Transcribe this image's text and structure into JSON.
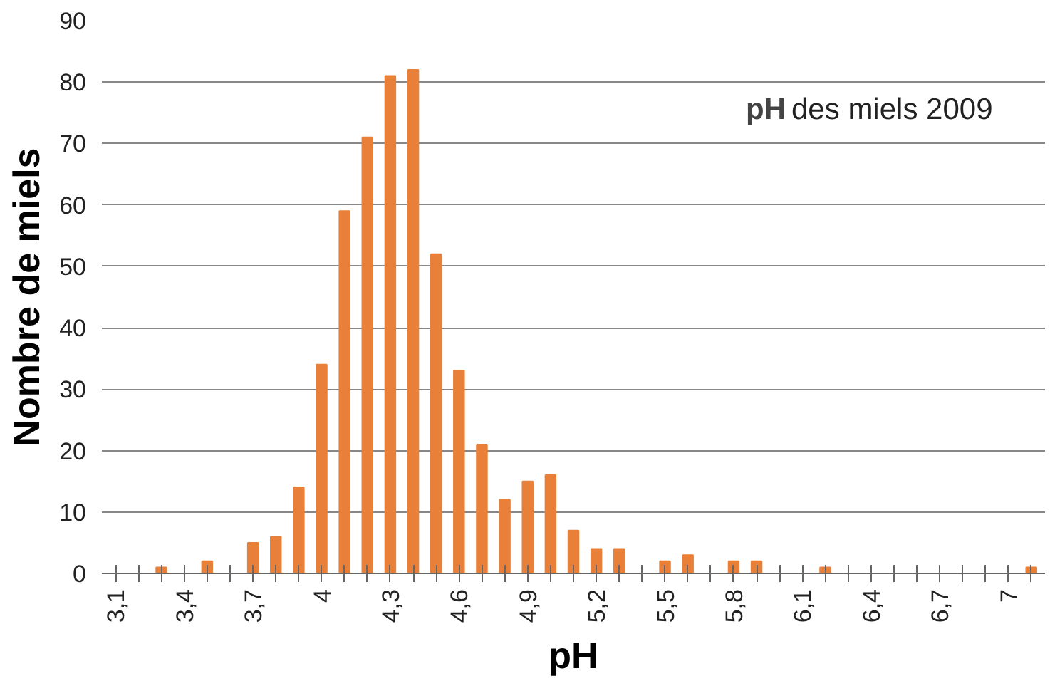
{
  "chart_data": {
    "type": "bar",
    "xlabel": "pH",
    "ylabel": "Nombre de miels",
    "annotations": [
      "pH des miels 2009"
    ],
    "categories": [
      "3,1",
      null,
      null,
      "3,4",
      null,
      null,
      "3,7",
      null,
      null,
      "4",
      null,
      null,
      "4,3",
      null,
      null,
      "4,6",
      null,
      null,
      "4,9",
      null,
      null,
      "5,2",
      null,
      null,
      "5,5",
      null,
      null,
      "5,8",
      null,
      null,
      "6,1",
      null,
      null,
      "6,4",
      null,
      null,
      "6,7",
      null,
      null,
      "7",
      null
    ],
    "values": [
      0,
      0,
      1,
      0,
      2,
      0,
      5,
      6,
      14,
      34,
      59,
      71,
      81,
      82,
      52,
      33,
      21,
      12,
      15,
      16,
      7,
      4,
      4,
      0,
      2,
      3,
      0,
      2,
      2,
      0,
      0,
      1,
      0,
      0,
      0,
      0,
      0,
      0,
      0,
      0,
      1
    ],
    "color": "#e8803a",
    "ylim": [
      0,
      90
    ],
    "yticks": [
      0,
      10,
      20,
      30,
      40,
      50,
      60,
      70,
      80,
      90
    ],
    "grid": "y"
  }
}
